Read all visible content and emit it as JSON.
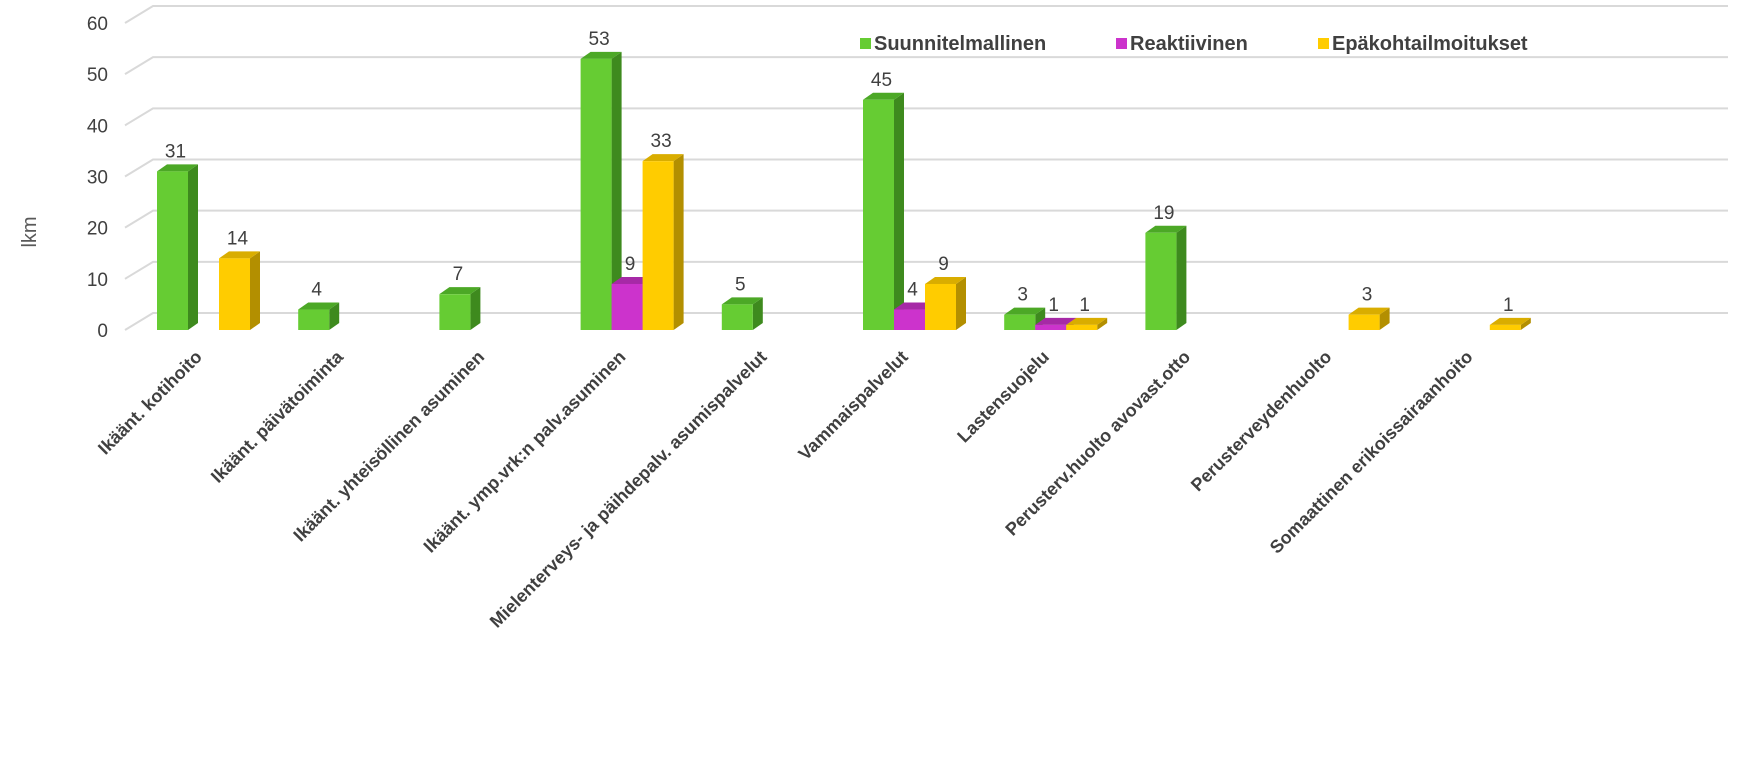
{
  "chart_data": {
    "type": "bar",
    "ylabel": "lkm",
    "ylim": [
      0,
      60
    ],
    "yticks": [
      0,
      10,
      20,
      30,
      40,
      50,
      60
    ],
    "grid": true,
    "legend_position": "top-right",
    "categories": [
      "Ikäänt. kotihoito",
      "Ikäänt. päivätoiminta",
      "Ikäänt. yhteisöllinen asuminen",
      "Ikäänt. ymp.vrk:n palv.asuminen",
      "Mielenterveys- ja päihdepalv. asumispalvelut",
      "Vammaispalvelut",
      "Lastensuojelu",
      "Perusterv.huolto avovast.otto",
      "Perusterveydenhuolto",
      "Somaattinen erikoissairaanhoito"
    ],
    "series": [
      {
        "name": "Suunnitelmallinen",
        "color": "#66CC33",
        "side": "#3E8A1E",
        "top": "#4CA826",
        "values": [
          31,
          4,
          7,
          53,
          5,
          45,
          3,
          19,
          null,
          null
        ]
      },
      {
        "name": "Reaktiivinen",
        "color": "#CC33CC",
        "side": "#8A1F8A",
        "top": "#A629A6",
        "values": [
          null,
          null,
          null,
          9,
          null,
          4,
          1,
          null,
          null,
          null
        ]
      },
      {
        "name": "Epäkohtailmoitukset",
        "color": "#FFCC00",
        "side": "#B38F00",
        "top": "#D9AD00",
        "values": [
          14,
          null,
          null,
          33,
          null,
          9,
          1,
          null,
          3,
          1
        ]
      }
    ]
  }
}
